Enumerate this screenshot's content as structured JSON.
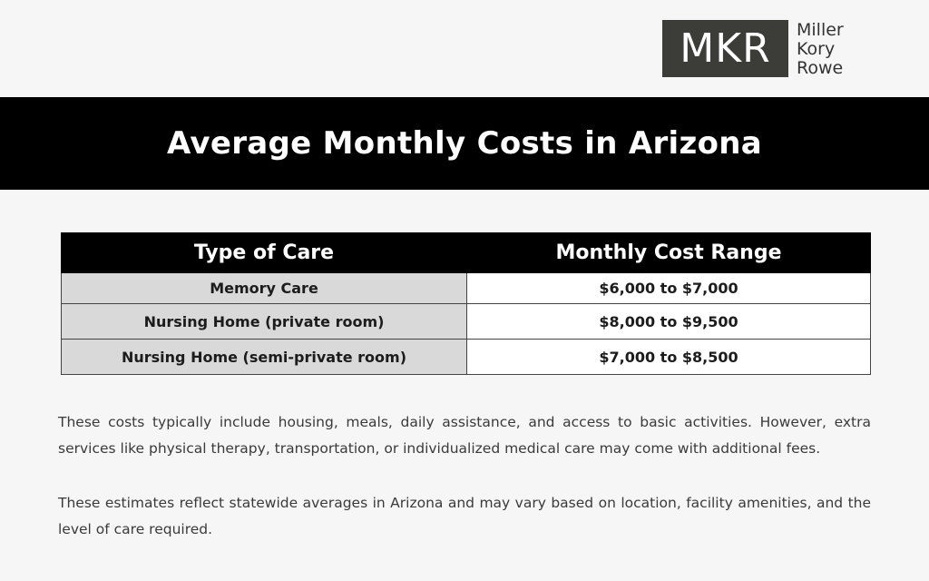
{
  "logo": {
    "initials": "MKR",
    "line1": "Miller",
    "line2": "Kory",
    "line3": "Rowe"
  },
  "banner": {
    "title": "Average Monthly Costs in Arizona"
  },
  "table": {
    "headers": [
      "Type of Care",
      "Monthly Cost Range"
    ],
    "rows": [
      [
        "Memory Care",
        "$6,000 to $7,000"
      ],
      [
        "Nursing Home (private room)",
        "$8,000 to $9,500"
      ],
      [
        "Nursing Home (semi-private room)",
        "$7,000 to $8,500"
      ]
    ]
  },
  "paragraphs": [
    "These costs typically include housing, meals, daily assistance, and access to basic activities. However, extra services like physical therapy, transportation, or individualized medical care may come with additional fees.",
    "These estimates reflect statewide averages in Arizona and may vary based on location, facility amenities, and the level of care required."
  ],
  "colors": {
    "banner_bg": "#000000",
    "logo_bg": "#3c3c38",
    "label_cell_bg": "#d9d9d9",
    "page_bg": "#f6f6f6"
  }
}
